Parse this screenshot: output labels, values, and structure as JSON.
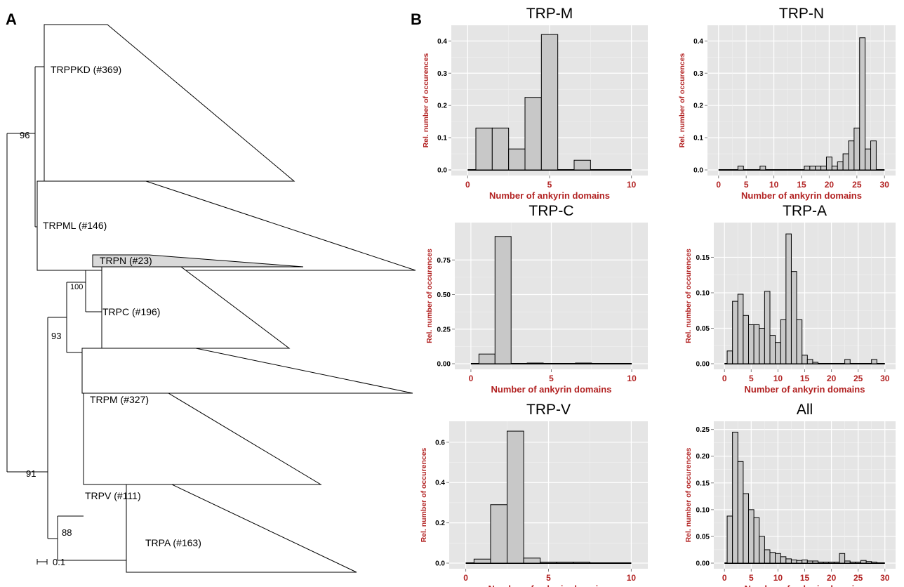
{
  "panels": {
    "a_label": "A",
    "b_label": "B"
  },
  "tree": {
    "clades": [
      {
        "label": "TRPPKD (#369)",
        "highlight": false
      },
      {
        "label": "TRPML (#146)",
        "highlight": false
      },
      {
        "label": "TRPN (#23)",
        "highlight": true
      },
      {
        "label": "TRPC (#196)",
        "highlight": false
      },
      {
        "label": "TRPM (#327)",
        "highlight": false
      },
      {
        "label": "TRPV (#111)",
        "highlight": false
      },
      {
        "label": "TRPA (#163)",
        "highlight": false
      }
    ],
    "supports": [
      "96",
      "100",
      "93",
      "91",
      "88"
    ],
    "scale_label": "0.1"
  },
  "chart_data": [
    {
      "type": "bar",
      "title": "TRP-M",
      "xlabel": "Number of ankyrin domains",
      "ylabel": "Rel. number of occurences",
      "xlim": [
        0,
        10
      ],
      "xticks": [
        "0",
        "5",
        "10"
      ],
      "ylim": [
        0,
        0.44
      ],
      "yticks": [
        "0.0",
        "0.1",
        "0.2",
        "0.3",
        "0.4"
      ],
      "x": [
        1,
        2,
        3,
        4,
        5,
        6,
        7
      ],
      "values": [
        0.13,
        0.13,
        0.065,
        0.225,
        0.42,
        0,
        0.03
      ]
    },
    {
      "type": "bar",
      "title": "TRP-N",
      "xlabel": "Number of ankyrin domains",
      "ylabel": "Rel. number of occurences",
      "xlim": [
        0,
        30
      ],
      "xticks": [
        "0",
        "5",
        "10",
        "15",
        "20",
        "25",
        "30"
      ],
      "ylim": [
        0,
        0.44
      ],
      "yticks": [
        "0.0",
        "0.1",
        "0.2",
        "0.3",
        "0.4"
      ],
      "x": [
        4,
        8,
        16,
        17,
        18,
        19,
        20,
        21,
        22,
        23,
        24,
        25,
        26,
        27,
        28
      ],
      "values": [
        0.012,
        0.012,
        0.012,
        0.012,
        0.012,
        0.012,
        0.04,
        0.012,
        0.025,
        0.05,
        0.09,
        0.13,
        0.41,
        0.065,
        0.09
      ]
    },
    {
      "type": "bar",
      "title": "TRP-C",
      "xlabel": "Number of ankyrin domains",
      "ylabel": "Rel. number of occurences",
      "xlim": [
        0,
        10
      ],
      "xticks": [
        "0",
        "5",
        "10"
      ],
      "ylim": [
        0,
        1.0
      ],
      "yticks": [
        "0.00",
        "0.25",
        "0.50",
        "0.75"
      ],
      "x": [
        1,
        2,
        4,
        7
      ],
      "values": [
        0.07,
        0.92,
        0.005,
        0.005
      ]
    },
    {
      "type": "bar",
      "title": "TRP-A",
      "xlabel": "Number of ankyrin domains",
      "ylabel": "Rel. number of occurences",
      "xlim": [
        0,
        30
      ],
      "xticks": [
        "0",
        "5",
        "10",
        "15",
        "20",
        "25",
        "30"
      ],
      "ylim": [
        0,
        0.195
      ],
      "yticks": [
        "0.00",
        "0.05",
        "0.10",
        "0.15"
      ],
      "x": [
        1,
        2,
        3,
        4,
        5,
        6,
        7,
        8,
        9,
        10,
        11,
        12,
        13,
        14,
        15,
        16,
        17,
        23,
        28
      ],
      "values": [
        0.018,
        0.088,
        0.098,
        0.068,
        0.055,
        0.055,
        0.05,
        0.102,
        0.04,
        0.03,
        0.062,
        0.183,
        0.13,
        0.062,
        0.012,
        0.006,
        0.002,
        0.006,
        0.006
      ]
    },
    {
      "type": "bar",
      "title": "TRP-V",
      "xlabel": "Number of ankyrin domains",
      "ylabel": "Rel. number of occurences",
      "xlim": [
        0,
        10
      ],
      "xticks": [
        "0",
        "5",
        "10"
      ],
      "ylim": [
        0,
        0.69
      ],
      "yticks": [
        "0.0",
        "0.2",
        "0.4",
        "0.6"
      ],
      "x": [
        1,
        2,
        3,
        4,
        5,
        6,
        7
      ],
      "values": [
        0.02,
        0.29,
        0.655,
        0.025,
        0.005,
        0.005,
        0.005
      ]
    },
    {
      "type": "bar",
      "title": "All",
      "xlabel": "Number of ankyrin domains",
      "ylabel": "Rel. number of occurences",
      "xlim": [
        0,
        30
      ],
      "xticks": [
        "0",
        "5",
        "10",
        "15",
        "20",
        "25",
        "30"
      ],
      "ylim": [
        0,
        0.26
      ],
      "yticks": [
        "0.00",
        "0.05",
        "0.10",
        "0.15",
        "0.20",
        "0.25"
      ],
      "x": [
        1,
        2,
        3,
        4,
        5,
        6,
        7,
        8,
        9,
        10,
        11,
        12,
        13,
        14,
        15,
        16,
        17,
        18,
        19,
        20,
        21,
        22,
        23,
        24,
        25,
        26,
        27,
        28
      ],
      "values": [
        0.088,
        0.245,
        0.19,
        0.13,
        0.1,
        0.085,
        0.05,
        0.025,
        0.02,
        0.018,
        0.012,
        0.008,
        0.006,
        0.005,
        0.006,
        0.004,
        0.004,
        0.002,
        0.002,
        0.002,
        0.002,
        0.018,
        0.004,
        0.002,
        0.002,
        0.005,
        0.003,
        0.002
      ]
    }
  ]
}
